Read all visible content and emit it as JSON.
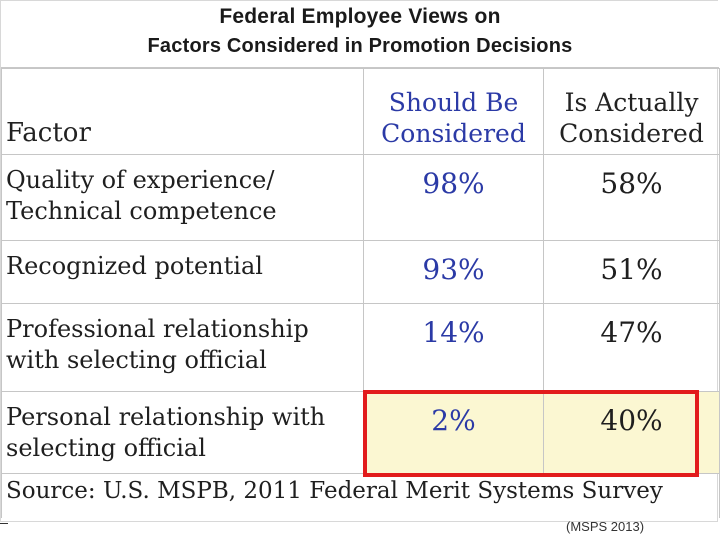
{
  "title": {
    "line1": "Federal Employee Views on",
    "line2": "Factors Considered in Promotion Decisions"
  },
  "table": {
    "headers": {
      "factor": "Factor",
      "should_line1": "Should Be",
      "should_line2": "Considered",
      "actual_line1": "Is Actually",
      "actual_line2": "Considered"
    },
    "rows": [
      {
        "factor_line1": "Quality of experience/",
        "factor_line2": "Technical competence",
        "should": "98%",
        "actual": "58%"
      },
      {
        "factor_line1": "Recognized potential",
        "factor_line2": "",
        "should": "93%",
        "actual": "51%"
      },
      {
        "factor_line1": "Professional relationship",
        "factor_line2": "with selecting official",
        "should": "14%",
        "actual": "47%"
      },
      {
        "factor_line1": "Personal relationship with",
        "factor_line2": "selecting official",
        "should": "2%",
        "actual": "40%"
      }
    ],
    "source": "Source:  U.S. MSPB, 2011 Federal Merit Systems Survey"
  },
  "citation": "(MSPS 2013)",
  "colors": {
    "should_text": "#2b3aa6",
    "highlight_border": "#e21c1c",
    "highlight_fill": "#fbf7d2"
  }
}
